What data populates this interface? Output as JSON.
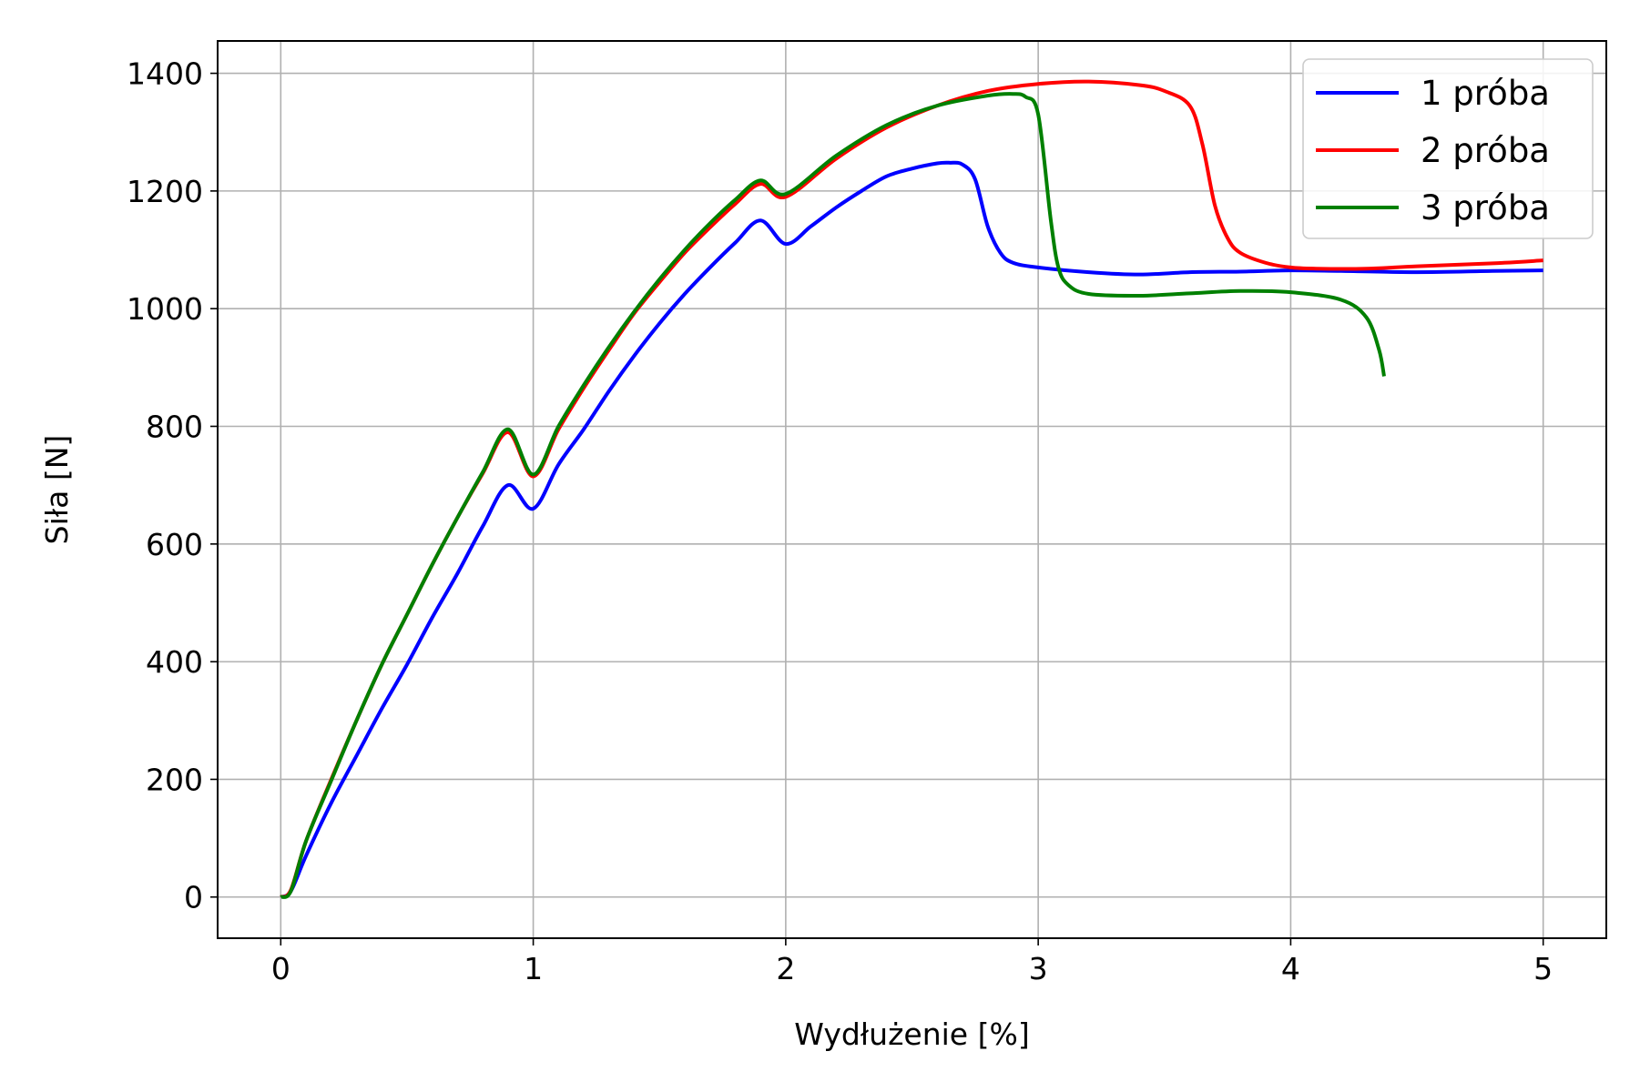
{
  "chart_data": {
    "type": "line",
    "title": "",
    "xlabel": "Wydłużenie [%]",
    "ylabel": "Siła [N]",
    "xlim": [
      -0.25,
      5.25
    ],
    "ylim": [
      -70,
      1455
    ],
    "xticks": [
      0,
      1,
      2,
      3,
      4,
      5
    ],
    "yticks": [
      0,
      200,
      400,
      600,
      800,
      1000,
      1200,
      1400
    ],
    "grid": true,
    "legend_position": "top-right",
    "series": [
      {
        "name": "1 próba",
        "color": "#0000ff",
        "x": [
          0,
          0.04,
          0.1,
          0.2,
          0.3,
          0.4,
          0.5,
          0.6,
          0.7,
          0.8,
          0.9,
          1.0,
          1.1,
          1.2,
          1.3,
          1.4,
          1.5,
          1.6,
          1.7,
          1.8,
          1.9,
          2.0,
          2.1,
          2.2,
          2.3,
          2.4,
          2.5,
          2.6,
          2.65,
          2.7,
          2.75,
          2.8,
          2.85,
          2.9,
          3.0,
          3.2,
          3.4,
          3.6,
          3.8,
          4.0,
          4.2,
          4.5,
          4.8,
          5.0
        ],
        "y": [
          0,
          10,
          70,
          160,
          240,
          320,
          395,
          475,
          550,
          630,
          700,
          660,
          735,
          795,
          860,
          920,
          975,
          1025,
          1070,
          1112,
          1150,
          1110,
          1140,
          1172,
          1200,
          1225,
          1238,
          1247,
          1248,
          1245,
          1220,
          1140,
          1095,
          1078,
          1070,
          1062,
          1058,
          1062,
          1063,
          1065,
          1064,
          1062,
          1064,
          1065
        ]
      },
      {
        "name": "2 próba",
        "color": "#ff0000",
        "x": [
          0,
          0.04,
          0.1,
          0.2,
          0.3,
          0.4,
          0.5,
          0.6,
          0.7,
          0.8,
          0.9,
          1.0,
          1.1,
          1.2,
          1.3,
          1.4,
          1.5,
          1.6,
          1.7,
          1.8,
          1.9,
          2.0,
          2.2,
          2.4,
          2.6,
          2.8,
          3.0,
          3.2,
          3.4,
          3.5,
          3.6,
          3.65,
          3.7,
          3.75,
          3.8,
          3.9,
          4.0,
          4.1,
          4.3,
          4.5,
          4.8,
          5.0
        ],
        "y": [
          0,
          12,
          95,
          200,
          300,
          395,
          480,
          565,
          645,
          720,
          790,
          715,
          795,
          865,
          930,
          992,
          1045,
          1095,
          1138,
          1178,
          1212,
          1190,
          1255,
          1308,
          1345,
          1370,
          1382,
          1386,
          1380,
          1370,
          1345,
          1280,
          1175,
          1120,
          1095,
          1078,
          1070,
          1068,
          1068,
          1072,
          1077,
          1082
        ]
      },
      {
        "name": "3 próba",
        "color": "#008000",
        "x": [
          0,
          0.04,
          0.1,
          0.2,
          0.3,
          0.4,
          0.5,
          0.6,
          0.7,
          0.8,
          0.9,
          1.0,
          1.1,
          1.2,
          1.3,
          1.4,
          1.5,
          1.6,
          1.7,
          1.8,
          1.9,
          2.0,
          2.2,
          2.4,
          2.6,
          2.8,
          2.9,
          2.95,
          3.0,
          3.05,
          3.08,
          3.12,
          3.2,
          3.4,
          3.6,
          3.8,
          4.0,
          4.2,
          4.3,
          4.35,
          4.37
        ],
        "y": [
          0,
          10,
          95,
          198,
          300,
          395,
          480,
          565,
          645,
          722,
          795,
          718,
          800,
          870,
          935,
          995,
          1050,
          1100,
          1145,
          1185,
          1218,
          1195,
          1260,
          1312,
          1345,
          1362,
          1365,
          1360,
          1330,
          1150,
          1070,
          1040,
          1025,
          1022,
          1026,
          1030,
          1028,
          1015,
          985,
          930,
          885
        ]
      }
    ]
  }
}
